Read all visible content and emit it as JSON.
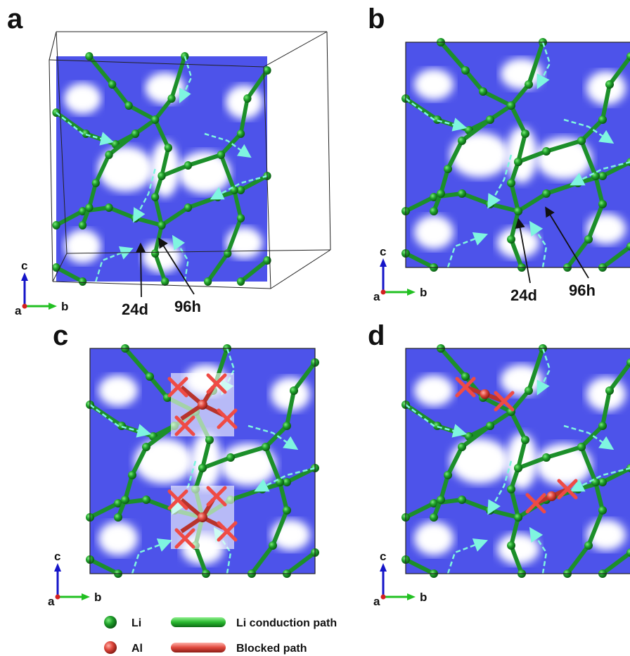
{
  "panels": [
    {
      "label": "a",
      "axes": {
        "up": "c",
        "right": "b",
        "out": "a"
      },
      "annotations": [
        "24d",
        "96h"
      ]
    },
    {
      "label": "b",
      "axes": {
        "up": "c",
        "right": "b",
        "out": "a"
      },
      "annotations": [
        "24d",
        "96h"
      ]
    },
    {
      "label": "c",
      "axes": {
        "up": "c",
        "right": "b",
        "out": "a"
      }
    },
    {
      "label": "d",
      "axes": {
        "up": "c",
        "right": "b",
        "out": "a"
      }
    }
  ],
  "legend": [
    {
      "label": "Li"
    },
    {
      "label": "Li conduction path"
    },
    {
      "label": "Al"
    },
    {
      "label": "Blocked path"
    }
  ]
}
